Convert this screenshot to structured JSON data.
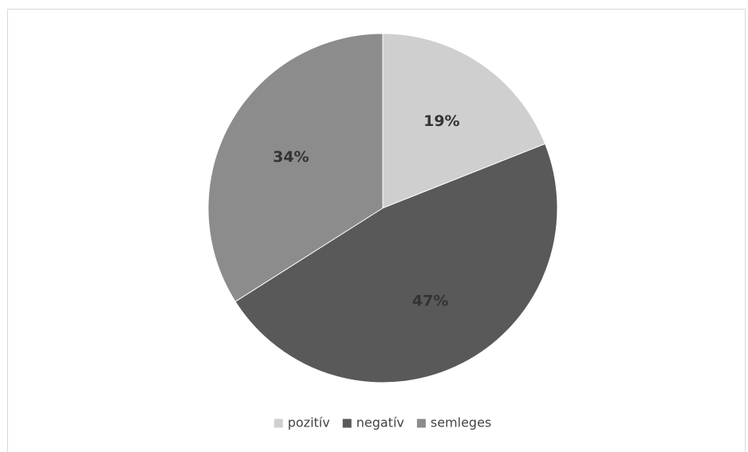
{
  "chart_data": {
    "type": "pie",
    "title": "",
    "categories": [
      "pozitív",
      "negatív",
      "semleges"
    ],
    "values": [
      19,
      47,
      34
    ],
    "labels": [
      "19%",
      "47%",
      "34%"
    ],
    "colors": [
      "#cfcfcf",
      "#595959",
      "#8c8c8c"
    ],
    "label_colors": [
      "#333333",
      "#333333",
      "#333333"
    ],
    "start_at": "top",
    "direction": "clockwise",
    "legend": {
      "position": "bottom",
      "entries": [
        "pozitív",
        "negatív",
        "semleges"
      ]
    }
  }
}
